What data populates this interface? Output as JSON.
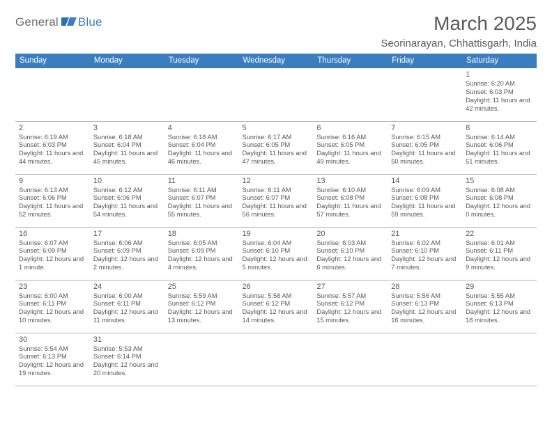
{
  "logo": {
    "text1": "General",
    "text2": "Blue"
  },
  "title": "March 2025",
  "location": "Seorinarayan, Chhattisgarh, India",
  "colors": {
    "header_bg": "#3b7ebf",
    "header_text": "#ffffff",
    "cell_border_top": "#3b7ebf",
    "cell_border_bottom": "#b9b9b9",
    "text": "#575757",
    "logo_blue": "#3b7ebf",
    "logo_gray": "#6b6b6b"
  },
  "daysOfWeek": [
    "Sunday",
    "Monday",
    "Tuesday",
    "Wednesday",
    "Thursday",
    "Friday",
    "Saturday"
  ],
  "weeks": [
    [
      {},
      {},
      {},
      {},
      {},
      {},
      {
        "n": "1",
        "sr": "6:20 AM",
        "ss": "6:03 PM",
        "dl": "11 hours and 42 minutes."
      }
    ],
    [
      {
        "n": "2",
        "sr": "6:19 AM",
        "ss": "6:03 PM",
        "dl": "11 hours and 44 minutes."
      },
      {
        "n": "3",
        "sr": "6:18 AM",
        "ss": "6:04 PM",
        "dl": "11 hours and 45 minutes."
      },
      {
        "n": "4",
        "sr": "6:18 AM",
        "ss": "6:04 PM",
        "dl": "11 hours and 46 minutes."
      },
      {
        "n": "5",
        "sr": "6:17 AM",
        "ss": "6:05 PM",
        "dl": "11 hours and 47 minutes."
      },
      {
        "n": "6",
        "sr": "6:16 AM",
        "ss": "6:05 PM",
        "dl": "11 hours and 49 minutes."
      },
      {
        "n": "7",
        "sr": "6:15 AM",
        "ss": "6:05 PM",
        "dl": "11 hours and 50 minutes."
      },
      {
        "n": "8",
        "sr": "6:14 AM",
        "ss": "6:06 PM",
        "dl": "11 hours and 51 minutes."
      }
    ],
    [
      {
        "n": "9",
        "sr": "6:13 AM",
        "ss": "6:06 PM",
        "dl": "11 hours and 52 minutes."
      },
      {
        "n": "10",
        "sr": "6:12 AM",
        "ss": "6:06 PM",
        "dl": "11 hours and 54 minutes."
      },
      {
        "n": "11",
        "sr": "6:11 AM",
        "ss": "6:07 PM",
        "dl": "11 hours and 55 minutes."
      },
      {
        "n": "12",
        "sr": "6:11 AM",
        "ss": "6:07 PM",
        "dl": "11 hours and 56 minutes."
      },
      {
        "n": "13",
        "sr": "6:10 AM",
        "ss": "6:08 PM",
        "dl": "11 hours and 57 minutes."
      },
      {
        "n": "14",
        "sr": "6:09 AM",
        "ss": "6:08 PM",
        "dl": "11 hours and 59 minutes."
      },
      {
        "n": "15",
        "sr": "6:08 AM",
        "ss": "6:08 PM",
        "dl": "12 hours and 0 minutes."
      }
    ],
    [
      {
        "n": "16",
        "sr": "6:07 AM",
        "ss": "6:09 PM",
        "dl": "12 hours and 1 minute."
      },
      {
        "n": "17",
        "sr": "6:06 AM",
        "ss": "6:09 PM",
        "dl": "12 hours and 2 minutes."
      },
      {
        "n": "18",
        "sr": "6:05 AM",
        "ss": "6:09 PM",
        "dl": "12 hours and 4 minutes."
      },
      {
        "n": "19",
        "sr": "6:04 AM",
        "ss": "6:10 PM",
        "dl": "12 hours and 5 minutes."
      },
      {
        "n": "20",
        "sr": "6:03 AM",
        "ss": "6:10 PM",
        "dl": "12 hours and 6 minutes."
      },
      {
        "n": "21",
        "sr": "6:02 AM",
        "ss": "6:10 PM",
        "dl": "12 hours and 7 minutes."
      },
      {
        "n": "22",
        "sr": "6:01 AM",
        "ss": "6:11 PM",
        "dl": "12 hours and 9 minutes."
      }
    ],
    [
      {
        "n": "23",
        "sr": "6:00 AM",
        "ss": "6:11 PM",
        "dl": "12 hours and 10 minutes."
      },
      {
        "n": "24",
        "sr": "6:00 AM",
        "ss": "6:11 PM",
        "dl": "12 hours and 11 minutes."
      },
      {
        "n": "25",
        "sr": "5:59 AM",
        "ss": "6:12 PM",
        "dl": "12 hours and 13 minutes."
      },
      {
        "n": "26",
        "sr": "5:58 AM",
        "ss": "6:12 PM",
        "dl": "12 hours and 14 minutes."
      },
      {
        "n": "27",
        "sr": "5:57 AM",
        "ss": "6:12 PM",
        "dl": "12 hours and 15 minutes."
      },
      {
        "n": "28",
        "sr": "5:56 AM",
        "ss": "6:13 PM",
        "dl": "12 hours and 16 minutes."
      },
      {
        "n": "29",
        "sr": "5:55 AM",
        "ss": "6:13 PM",
        "dl": "12 hours and 18 minutes."
      }
    ],
    [
      {
        "n": "30",
        "sr": "5:54 AM",
        "ss": "6:13 PM",
        "dl": "12 hours and 19 minutes."
      },
      {
        "n": "31",
        "sr": "5:53 AM",
        "ss": "6:14 PM",
        "dl": "12 hours and 20 minutes."
      },
      {},
      {},
      {},
      {},
      {}
    ]
  ],
  "labels": {
    "sunrise": "Sunrise:",
    "sunset": "Sunset:",
    "daylight": "Daylight:"
  }
}
